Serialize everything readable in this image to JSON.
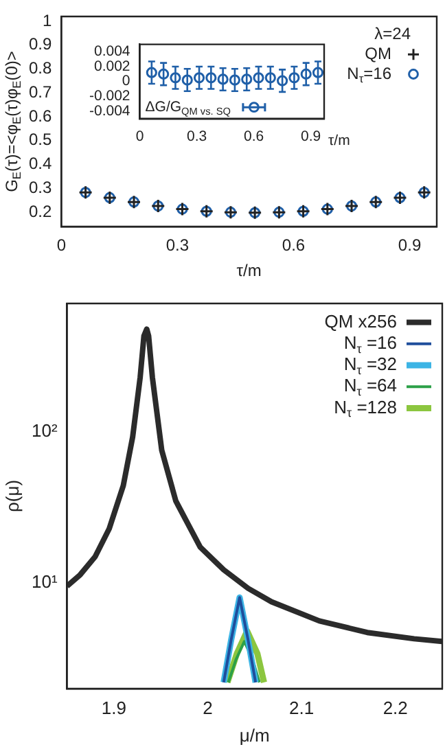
{
  "chart_data": [
    {
      "type": "scatter",
      "xlabel": "τ/m",
      "ylabel": "G$_{E}$(τ)=<φ$_{E}$(τ)φ$_{E}$(0)>",
      "legend_title": "λ=24",
      "legend": "top right",
      "x": [
        0.0625,
        0.125,
        0.1875,
        0.25,
        0.3125,
        0.375,
        0.4375,
        0.5,
        0.5625,
        0.625,
        0.6875,
        0.75,
        0.8125,
        0.875,
        0.9375
      ],
      "xlim": [
        0,
        0.97
      ],
      "xticks": [
        0,
        0.3,
        0.6,
        0.9
      ],
      "ylim": [
        0.14,
        1.02
      ],
      "yticks": [
        0.2,
        0.3,
        0.4,
        0.5,
        0.6,
        0.7,
        0.8,
        0.9,
        1
      ],
      "series": [
        {
          "name": "QM",
          "color": "#222222",
          "marker": "cross",
          "values": [
            0.283,
            0.261,
            0.243,
            0.226,
            0.213,
            0.204,
            0.2,
            0.198,
            0.2,
            0.204,
            0.213,
            0.226,
            0.243,
            0.261,
            0.283
          ]
        },
        {
          "name": "N$_{τ}$=16",
          "color": "#1f5fa8",
          "marker": "circle",
          "values": [
            0.283,
            0.261,
            0.243,
            0.226,
            0.213,
            0.204,
            0.2,
            0.198,
            0.2,
            0.204,
            0.213,
            0.226,
            0.243,
            0.261,
            0.283
          ]
        }
      ]
    },
    {
      "type": "scatter",
      "xlabel": "τ/m",
      "legend": "bottom left",
      "x": [
        0.0625,
        0.125,
        0.1875,
        0.25,
        0.3125,
        0.375,
        0.4375,
        0.5,
        0.5625,
        0.625,
        0.6875,
        0.75,
        0.8125,
        0.875,
        0.9375
      ],
      "xlim": [
        0,
        0.97
      ],
      "xticks": [
        0,
        0.3,
        0.6,
        0.9
      ],
      "ylim": [
        -0.005,
        0.005
      ],
      "yticks": [
        -0.004,
        -0.002,
        0,
        0.002,
        0.004
      ],
      "series": [
        {
          "name": "ΔG/G$_{QM vs. SQ}$",
          "color": "#1f5fa8",
          "marker": "circle",
          "values": [
            0.0012,
            0.001,
            0.0005,
            0.0002,
            0.0005,
            0.0005,
            0.0003,
            0.0002,
            0.0003,
            0.0005,
            0.0005,
            0.0001,
            0.0005,
            0.001,
            0.0012
          ],
          "errors": [
            0.0015,
            0.0015,
            0.0015,
            0.0015,
            0.0015,
            0.0015,
            0.0015,
            0.0015,
            0.0015,
            0.0015,
            0.0015,
            0.0015,
            0.0015,
            0.0015,
            0.0015
          ]
        }
      ]
    },
    {
      "type": "line",
      "xlabel": "μ/m",
      "ylabel": "ρ(μ)",
      "log": "y",
      "legend": "top right",
      "marker": "none",
      "xlim": [
        1.85,
        2.25
      ],
      "xticks": [
        1.9,
        2,
        2.1,
        2.2
      ],
      "ylim": [
        2,
        700
      ],
      "yticks": [
        {
          "value": 10,
          "label": "10¹"
        },
        {
          "value": 100,
          "label": "10²"
        }
      ],
      "series": [
        {
          "name": "QM x256",
          "color": "#2b2b2b",
          "x": [
            1.85,
            1.864,
            1.88,
            1.895,
            1.91,
            1.92,
            1.928,
            1.932,
            1.935,
            1.937,
            1.941,
            1.951,
            1.966,
            1.992,
            2.017,
            2.043,
            2.068,
            2.119,
            2.17,
            2.22,
            2.25
          ],
          "values": [
            9.5,
            11.3,
            14.9,
            22.8,
            43.9,
            92,
            228,
            427,
            474,
            427,
            228,
            75,
            34.7,
            17.2,
            12.2,
            9.2,
            7.5,
            5.6,
            4.7,
            4.27,
            4.1
          ]
        },
        {
          "name": "N$_{τ}$ =16",
          "color": "#1f4e9c",
          "x": [
            2.017,
            2.025,
            2.034,
            2.043,
            2.051
          ],
          "values": [
            2.2,
            4.2,
            8,
            4.2,
            2.2
          ]
        },
        {
          "name": "N$_{τ}$ =32",
          "color": "#3cb4e5",
          "x": [
            2.017,
            2.025,
            2.034,
            2.043,
            2.051
          ],
          "values": [
            2.2,
            4.2,
            8,
            4.2,
            2.2
          ]
        },
        {
          "name": "N$_{τ}$ =64",
          "color": "#2ca048",
          "x": [
            2.022,
            2.03,
            2.039,
            2.048,
            2.055
          ],
          "values": [
            2.2,
            3.1,
            4.1,
            3.1,
            2.2
          ]
        },
        {
          "name": "N$_{τ}$ =128",
          "color": "#8cc63f",
          "x": [
            2.021,
            2.031,
            2.042,
            2.053,
            2.06
          ],
          "values": [
            2.2,
            3.4,
            4.8,
            3.4,
            2.2
          ]
        }
      ]
    }
  ]
}
